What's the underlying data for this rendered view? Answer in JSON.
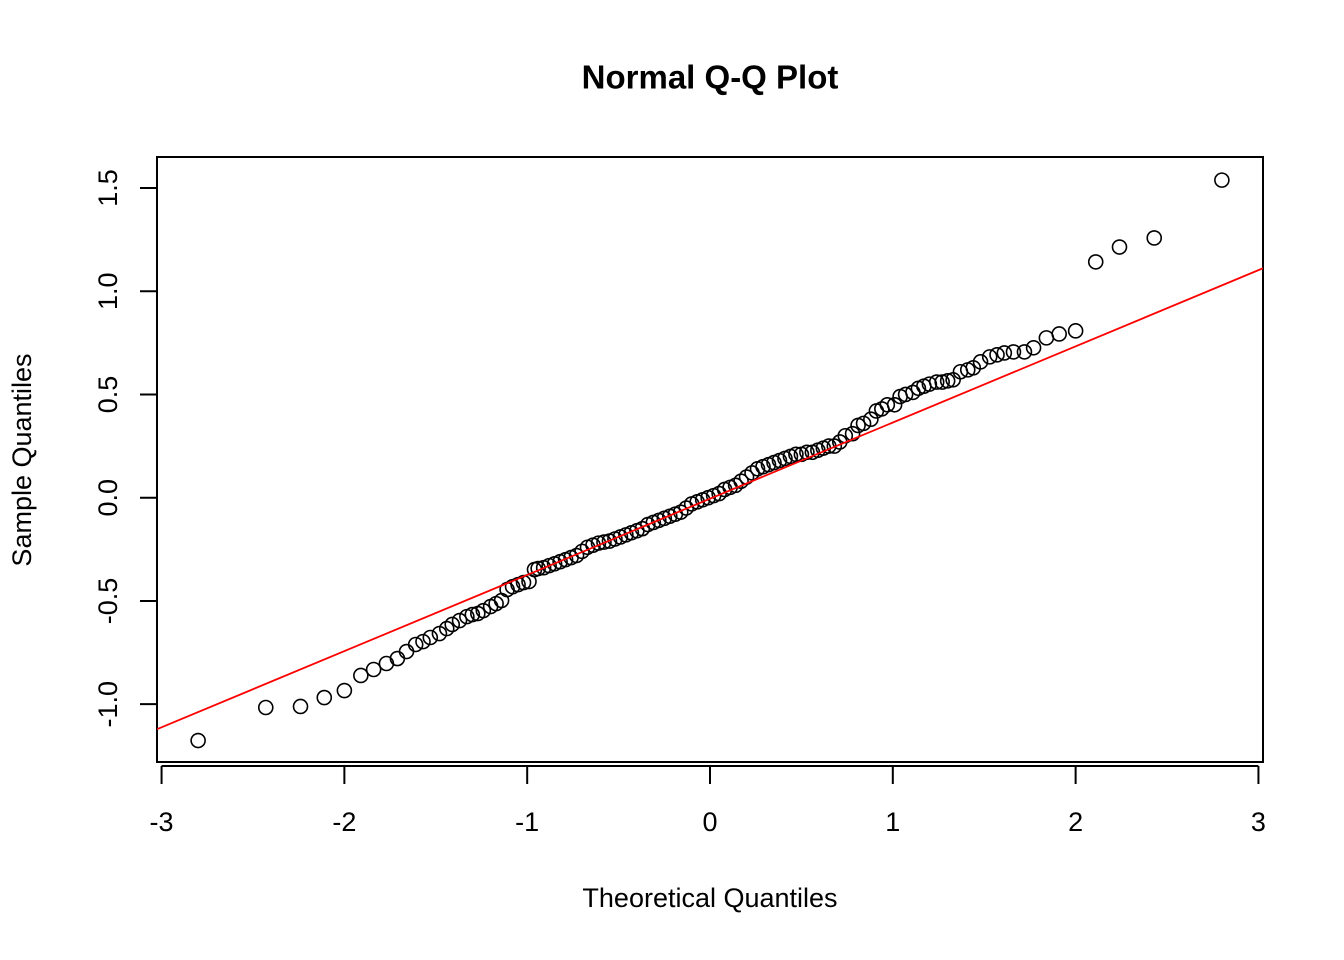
{
  "chart_data": {
    "type": "scatter",
    "title": "Normal Q-Q Plot",
    "x_label": "Theoretical Quantiles",
    "y_label": "Sample Quantiles",
    "xlim": [
      -3.025,
      3.025
    ],
    "ylim": [
      -1.28,
      1.65
    ],
    "xticks": [
      -3,
      -2,
      -1,
      0,
      1,
      2,
      3
    ],
    "yticks": [
      {
        "value": -1.0,
        "label": "-1.0"
      },
      -0.5,
      {
        "value": 0.0,
        "label": "0.0"
      },
      0.5,
      {
        "value": 1.0,
        "label": "1.0"
      },
      1.5
    ],
    "color": "#000000",
    "reference_line": {
      "intercept": -0.005,
      "slope": 0.369,
      "color": "#ff0000"
    },
    "x": [
      -2.8,
      -2.43,
      -2.24,
      -2.11,
      -2.0,
      -1.91,
      -1.84,
      -1.77,
      -1.71,
      -1.66,
      -1.61,
      -1.57,
      -1.53,
      -1.48,
      -1.44,
      -1.41,
      -1.37,
      -1.33,
      -1.3,
      -1.27,
      -1.24,
      -1.2,
      -1.17,
      -1.14,
      -1.11,
      -1.08,
      -1.05,
      -1.02,
      -0.99,
      -0.96,
      -0.94,
      -0.91,
      -0.88,
      -0.85,
      -0.82,
      -0.79,
      -0.76,
      -0.73,
      -0.7,
      -0.67,
      -0.64,
      -0.61,
      -0.58,
      -0.55,
      -0.52,
      -0.49,
      -0.46,
      -0.43,
      -0.4,
      -0.37,
      -0.34,
      -0.31,
      -0.28,
      -0.25,
      -0.22,
      -0.19,
      -0.16,
      -0.13,
      -0.1,
      -0.07,
      -0.04,
      -0.01,
      0.02,
      0.05,
      0.08,
      0.11,
      0.14,
      0.17,
      0.2,
      0.23,
      0.26,
      0.29,
      0.32,
      0.35,
      0.38,
      0.41,
      0.44,
      0.47,
      0.5,
      0.53,
      0.56,
      0.59,
      0.62,
      0.65,
      0.68,
      0.71,
      0.74,
      0.78,
      0.81,
      0.84,
      0.88,
      0.91,
      0.94,
      0.97,
      1.01,
      1.04,
      1.07,
      1.11,
      1.14,
      1.17,
      1.2,
      1.24,
      1.27,
      1.3,
      1.33,
      1.37,
      1.41,
      1.44,
      1.48,
      1.53,
      1.57,
      1.61,
      1.66,
      1.72,
      1.77,
      1.84,
      1.91,
      2.0,
      2.11,
      2.24,
      2.43,
      2.8
    ],
    "values": [
      -1.176,
      -1.016,
      -1.011,
      -0.968,
      -0.934,
      -0.861,
      -0.832,
      -0.803,
      -0.779,
      -0.745,
      -0.711,
      -0.697,
      -0.677,
      -0.658,
      -0.634,
      -0.614,
      -0.595,
      -0.576,
      -0.566,
      -0.561,
      -0.547,
      -0.527,
      -0.513,
      -0.498,
      -0.445,
      -0.431,
      -0.421,
      -0.411,
      -0.406,
      -0.348,
      -0.343,
      -0.339,
      -0.329,
      -0.32,
      -0.31,
      -0.3,
      -0.29,
      -0.28,
      -0.26,
      -0.24,
      -0.23,
      -0.22,
      -0.215,
      -0.21,
      -0.2,
      -0.19,
      -0.18,
      -0.17,
      -0.16,
      -0.15,
      -0.13,
      -0.12,
      -0.11,
      -0.1,
      -0.09,
      -0.08,
      -0.07,
      -0.05,
      -0.03,
      -0.02,
      -0.01,
      0.0,
      0.01,
      0.02,
      0.04,
      0.05,
      0.06,
      0.08,
      0.1,
      0.12,
      0.14,
      0.15,
      0.16,
      0.17,
      0.18,
      0.19,
      0.2,
      0.21,
      0.21,
      0.22,
      0.22,
      0.23,
      0.24,
      0.25,
      0.25,
      0.27,
      0.3,
      0.31,
      0.35,
      0.36,
      0.38,
      0.42,
      0.43,
      0.45,
      0.45,
      0.49,
      0.5,
      0.51,
      0.53,
      0.54,
      0.55,
      0.56,
      0.56,
      0.566,
      0.571,
      0.61,
      0.619,
      0.629,
      0.658,
      0.682,
      0.692,
      0.701,
      0.706,
      0.706,
      0.726,
      0.774,
      0.793,
      0.808,
      1.142,
      1.214,
      1.258,
      1.538
    ]
  }
}
